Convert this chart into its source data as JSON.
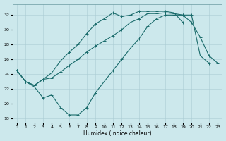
{
  "xlabel": "Humidex (Indice chaleur)",
  "bg_color": "#cce8ec",
  "line_color": "#1a6b6b",
  "grid_color": "#aacdd4",
  "xlim": [
    -0.5,
    23.5
  ],
  "ylim": [
    17.5,
    33.5
  ],
  "yticks": [
    18,
    20,
    22,
    24,
    26,
    28,
    30,
    32
  ],
  "xticks": [
    0,
    1,
    2,
    3,
    4,
    5,
    6,
    7,
    8,
    9,
    10,
    11,
    12,
    13,
    14,
    15,
    16,
    17,
    18,
    19,
    20,
    21,
    22,
    23
  ],
  "line1_x": [
    0,
    1,
    2,
    3,
    4,
    5,
    6,
    7,
    8,
    9,
    10,
    11,
    12,
    13,
    14,
    15,
    16,
    17,
    18,
    19,
    20,
    21,
    22,
    23
  ],
  "line1_y": [
    24.5,
    23.0,
    22.3,
    20.8,
    21.2,
    19.5,
    18.5,
    18.5,
    19.5,
    21.5,
    23.0,
    24.5,
    26.0,
    27.5,
    28.8,
    30.5,
    31.5,
    32.0,
    32.0,
    32.0,
    31.0,
    29.0,
    26.5,
    25.5
  ],
  "line2_x": [
    0,
    1,
    2,
    3,
    4,
    5,
    6,
    7,
    8,
    9,
    10,
    11,
    12,
    13,
    14,
    15,
    16,
    17,
    18,
    19,
    20,
    21,
    22
  ],
  "line2_y": [
    24.5,
    23.0,
    22.5,
    23.3,
    23.5,
    24.3,
    25.2,
    26.0,
    27.0,
    27.8,
    28.5,
    29.2,
    30.0,
    31.0,
    31.5,
    32.2,
    32.2,
    32.3,
    32.2,
    32.0,
    32.0,
    26.5,
    25.5
  ],
  "line3_x": [
    0,
    1,
    2,
    3,
    4,
    5,
    6,
    7,
    8,
    9,
    10,
    11,
    12,
    13,
    14,
    15,
    16,
    17,
    18,
    19
  ],
  "line3_y": [
    24.5,
    23.0,
    22.5,
    23.3,
    24.2,
    25.8,
    27.0,
    28.0,
    29.5,
    30.8,
    31.5,
    32.3,
    31.8,
    32.0,
    32.5,
    32.5,
    32.5,
    32.5,
    32.3,
    31.0
  ]
}
